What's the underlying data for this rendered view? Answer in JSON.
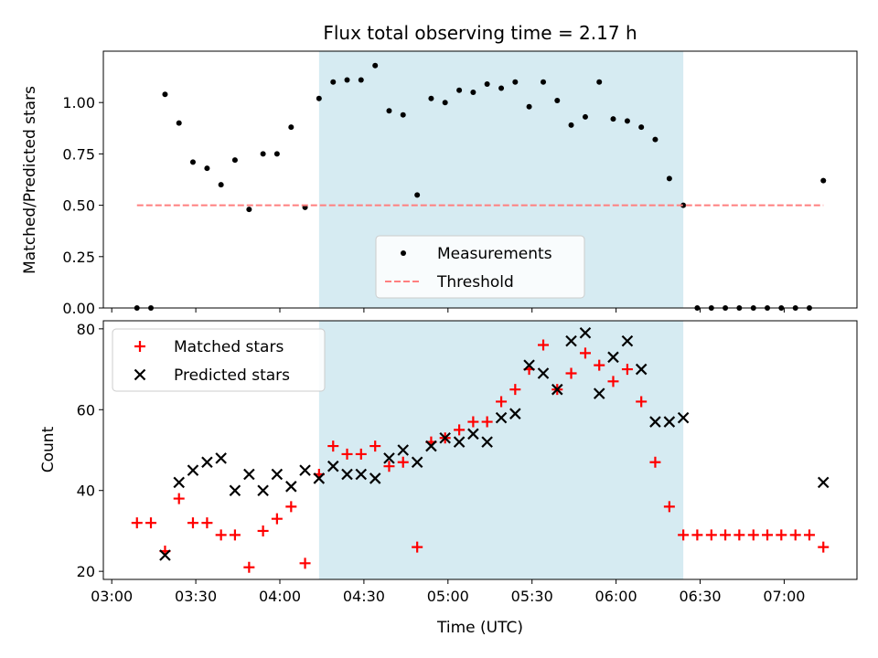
{
  "chart_data": [
    {
      "type": "scatter",
      "title": "Flux total observing time = 2.17 h",
      "xlabel": "",
      "ylabel": "Matched/Predicted stars",
      "ylim": [
        0,
        1.25
      ],
      "yticks": [
        0,
        0.25,
        0.5,
        0.75,
        1.0
      ],
      "ytick_labels": [
        "0.00",
        "0.25",
        "0.50",
        "0.75",
        "1.00"
      ],
      "shaded_region": {
        "x_start": 4.2333,
        "x_end": 6.4,
        "color": "#add8e6"
      },
      "legend": {
        "placement": "bottom-center",
        "entries": [
          "Measurements",
          "Threshold"
        ]
      },
      "series": [
        {
          "name": "Measurements",
          "marker": "dot",
          "color": "#000000",
          "x": [
            3.15,
            3.233,
            3.317,
            3.4,
            3.483,
            3.567,
            3.65,
            3.733,
            3.817,
            3.9,
            3.983,
            4.067,
            4.15,
            4.233,
            4.317,
            4.4,
            4.483,
            4.567,
            4.65,
            4.733,
            4.817,
            4.9,
            4.983,
            5.067,
            5.15,
            5.233,
            5.317,
            5.4,
            5.483,
            5.567,
            5.65,
            5.733,
            5.817,
            5.9,
            5.983,
            6.067,
            6.15,
            6.233,
            6.317,
            6.4,
            6.483,
            6.567,
            6.65,
            6.733,
            6.817,
            6.9,
            6.983,
            7.067,
            7.15,
            7.233
          ],
          "y": [
            0,
            0,
            1.04,
            0.9,
            0.71,
            0.68,
            0.6,
            0.72,
            0.48,
            0.75,
            0.75,
            0.88,
            0.49,
            1.02,
            1.1,
            1.11,
            1.11,
            1.18,
            0.96,
            0.94,
            0.55,
            1.02,
            1.0,
            1.06,
            1.05,
            1.09,
            1.07,
            1.1,
            0.98,
            1.1,
            1.01,
            0.89,
            0.93,
            1.1,
            0.92,
            0.91,
            0.88,
            0.82,
            0.63,
            0.5,
            0,
            0,
            0,
            0,
            0,
            0,
            0,
            0,
            0,
            0.62
          ]
        },
        {
          "name": "Threshold",
          "style": "dashed",
          "color": "#ff7f7f",
          "x": [
            3.15,
            7.233
          ],
          "y": [
            0.5,
            0.5
          ]
        }
      ]
    },
    {
      "type": "scatter",
      "title": "",
      "xlabel": "Time (UTC)",
      "ylabel": "Count",
      "ylim": [
        18,
        82
      ],
      "yticks": [
        20,
        40,
        60,
        80
      ],
      "ytick_labels": [
        "20",
        "40",
        "60",
        "80"
      ],
      "xlim": [
        2.95,
        7.433
      ],
      "xticks": [
        3.0,
        3.5,
        4.0,
        4.5,
        5.0,
        5.5,
        6.0,
        6.5,
        7.0
      ],
      "xtick_labels": [
        "03:00",
        "03:30",
        "04:00",
        "04:30",
        "05:00",
        "05:30",
        "06:00",
        "06:30",
        "07:00"
      ],
      "shaded_region": {
        "x_start": 4.2333,
        "x_end": 6.4,
        "color": "#add8e6"
      },
      "legend": {
        "placement": "top-left",
        "entries": [
          "Matched stars",
          "Predicted stars"
        ]
      },
      "series": [
        {
          "name": "Matched stars",
          "marker": "plus",
          "color": "#ff0000",
          "x": [
            3.15,
            3.233,
            3.317,
            3.4,
            3.483,
            3.567,
            3.65,
            3.733,
            3.817,
            3.9,
            3.983,
            4.067,
            4.15,
            4.233,
            4.317,
            4.4,
            4.483,
            4.567,
            4.65,
            4.733,
            4.817,
            4.9,
            4.983,
            5.067,
            5.15,
            5.233,
            5.317,
            5.4,
            5.483,
            5.567,
            5.65,
            5.733,
            5.817,
            5.9,
            5.983,
            6.067,
            6.15,
            6.233,
            6.317,
            6.4,
            6.483,
            6.567,
            6.65,
            6.733,
            6.817,
            6.9,
            6.983,
            7.067,
            7.15,
            7.233
          ],
          "y": [
            32,
            32,
            25,
            38,
            32,
            32,
            29,
            29,
            21,
            30,
            33,
            36,
            22,
            44,
            51,
            49,
            49,
            51,
            46,
            47,
            26,
            52,
            53,
            55,
            57,
            57,
            62,
            65,
            70,
            76,
            65,
            69,
            74,
            71,
            67,
            70,
            62,
            47,
            36,
            29,
            29,
            29,
            29,
            29,
            29,
            29,
            29,
            29,
            29,
            26
          ]
        },
        {
          "name": "Predicted stars",
          "marker": "x",
          "color": "#000000",
          "x": [
            3.317,
            3.4,
            3.483,
            3.567,
            3.65,
            3.733,
            3.817,
            3.9,
            3.983,
            4.067,
            4.15,
            4.233,
            4.317,
            4.4,
            4.483,
            4.567,
            4.65,
            4.733,
            4.817,
            4.9,
            4.983,
            5.067,
            5.15,
            5.233,
            5.317,
            5.4,
            5.483,
            5.567,
            5.65,
            5.733,
            5.817,
            5.9,
            5.983,
            6.067,
            6.15,
            6.233,
            6.317,
            6.4,
            7.233
          ],
          "y": [
            24,
            42,
            45,
            47,
            48,
            40,
            44,
            40,
            44,
            41,
            45,
            43,
            46,
            44,
            44,
            43,
            48,
            50,
            47,
            51,
            53,
            52,
            54,
            52,
            58,
            59,
            71,
            69,
            65,
            77,
            79,
            64,
            73,
            77,
            70,
            57,
            57,
            58,
            42
          ]
        }
      ]
    }
  ]
}
